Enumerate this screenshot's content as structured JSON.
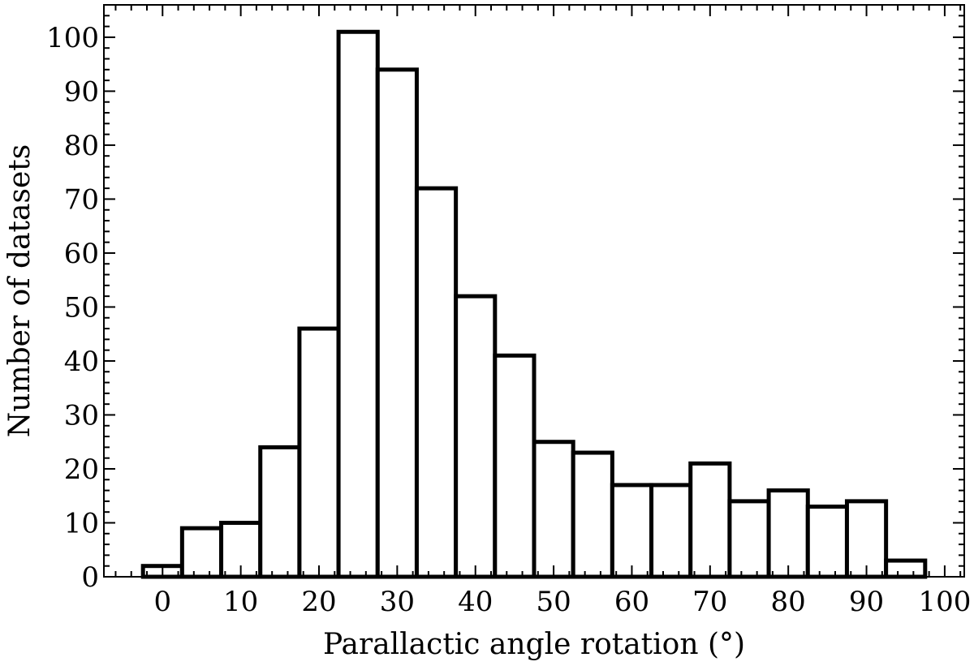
{
  "chart_data": {
    "type": "bar",
    "title": "",
    "xlabel": "Parallactic angle rotation (°)",
    "ylabel": "Number of datasets",
    "xlim": [
      -7.5,
      102.5
    ],
    "ylim": [
      0,
      106
    ],
    "bin_width": 5,
    "bins": [
      {
        "x": 0,
        "value": 2
      },
      {
        "x": 5,
        "value": 9
      },
      {
        "x": 10,
        "value": 10
      },
      {
        "x": 15,
        "value": 24
      },
      {
        "x": 20,
        "value": 46
      },
      {
        "x": 25,
        "value": 101
      },
      {
        "x": 30,
        "value": 94
      },
      {
        "x": 35,
        "value": 72
      },
      {
        "x": 40,
        "value": 52
      },
      {
        "x": 45,
        "value": 41
      },
      {
        "x": 50,
        "value": 25
      },
      {
        "x": 55,
        "value": 23
      },
      {
        "x": 60,
        "value": 17
      },
      {
        "x": 65,
        "value": 17
      },
      {
        "x": 70,
        "value": 21
      },
      {
        "x": 75,
        "value": 14
      },
      {
        "x": 80,
        "value": 16
      },
      {
        "x": 85,
        "value": 13
      },
      {
        "x": 90,
        "value": 14
      },
      {
        "x": 95,
        "value": 3
      }
    ],
    "x_ticks": [
      "0",
      "10",
      "20",
      "30",
      "40",
      "50",
      "60",
      "70",
      "80",
      "90",
      "100"
    ],
    "y_ticks": [
      "0",
      "10",
      "20",
      "30",
      "40",
      "50",
      "60",
      "70",
      "80",
      "90",
      "100"
    ],
    "bar_fill": "#ffffff",
    "bar_edge": "#000000",
    "grid": false,
    "legend": "none"
  }
}
